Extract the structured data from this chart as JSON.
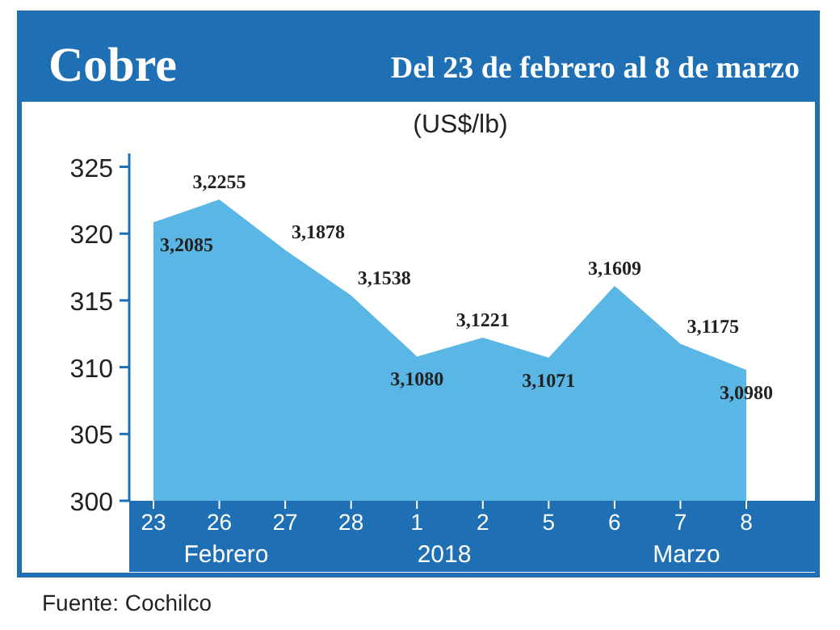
{
  "chart_data": {
    "type": "area",
    "title": "Cobre",
    "subtitle": "Del 23 de febrero al 8 de marzo",
    "ylabel": "(US$/lb)",
    "categories": [
      "23",
      "26",
      "27",
      "28",
      "1",
      "2",
      "5",
      "6",
      "7",
      "8"
    ],
    "series": [
      {
        "color": "#5ab6e4",
        "values": [
          320.85,
          322.55,
          318.78,
          315.38,
          310.8,
          312.21,
          310.71,
          316.09,
          311.75,
          309.8
        ],
        "value_labels": [
          "3,2085",
          "3,2255",
          "3,1878",
          "3,1538",
          "3,1080",
          "3,1221",
          "3,1071",
          "3,1609",
          "3,1175",
          "3,0980"
        ]
      }
    ],
    "ylim": [
      300,
      326
    ],
    "yticks": [
      300,
      305,
      310,
      315,
      320,
      325
    ],
    "grid": false,
    "annotations": [
      "Febrero",
      "2018",
      "Marzo",
      "Fuente: Cochilco"
    ]
  }
}
